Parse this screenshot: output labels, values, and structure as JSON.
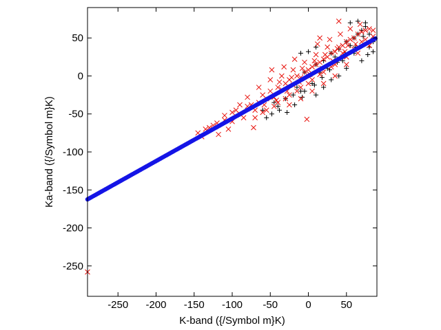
{
  "chart_data": {
    "type": "scatter",
    "title": "",
    "xlabel": "K-band ({/Symbol m}K)",
    "ylabel": "Ka-band ({/Symbol m}K)",
    "xlim": [
      -290,
      90
    ],
    "ylim": [
      -290,
      90
    ],
    "xticks": [
      -250,
      -200,
      -150,
      -100,
      -50,
      0,
      50
    ],
    "yticks": [
      -250,
      -200,
      -150,
      -100,
      -50,
      0,
      50
    ],
    "grid": false,
    "legend": "none",
    "series": [
      {
        "marker": "plus",
        "color": "#000000",
        "points": [
          [
            -45,
            -35
          ],
          [
            -40,
            -40
          ],
          [
            -30,
            -30
          ],
          [
            -20,
            -25
          ],
          [
            -15,
            -15
          ],
          [
            -10,
            -20
          ],
          [
            -5,
            5
          ],
          [
            0,
            0
          ],
          [
            5,
            -10
          ],
          [
            10,
            15
          ],
          [
            15,
            5
          ],
          [
            20,
            20
          ],
          [
            25,
            10
          ],
          [
            30,
            30
          ],
          [
            35,
            25
          ],
          [
            40,
            35
          ],
          [
            45,
            20
          ],
          [
            50,
            45
          ],
          [
            55,
            40
          ],
          [
            60,
            50
          ],
          [
            65,
            55
          ],
          [
            70,
            60
          ],
          [
            75,
            65
          ],
          [
            80,
            55
          ],
          [
            85,
            45
          ],
          [
            70,
            20
          ],
          [
            60,
            30
          ],
          [
            50,
            10
          ],
          [
            40,
            0
          ],
          [
            30,
            -5
          ],
          [
            20,
            -15
          ],
          [
            10,
            -25
          ],
          [
            -5,
            -20
          ],
          [
            55,
            70
          ],
          [
            65,
            72
          ],
          [
            75,
            70
          ],
          [
            72,
            52
          ],
          [
            62,
            38
          ],
          [
            48,
            28
          ],
          [
            38,
            18
          ],
          [
            28,
            8
          ],
          [
            18,
            -2
          ],
          [
            8,
            -12
          ],
          [
            -8,
            -28
          ],
          [
            -18,
            -38
          ],
          [
            -28,
            -48
          ],
          [
            -38,
            -45
          ],
          [
            -48,
            -50
          ],
          [
            -55,
            -55
          ],
          [
            -60,
            -45
          ],
          [
            80,
            38
          ],
          [
            85,
            32
          ],
          [
            78,
            28
          ],
          [
            -10,
            30
          ],
          [
            0,
            32
          ],
          [
            10,
            38
          ]
        ]
      },
      {
        "marker": "cross",
        "color": "#e8120c",
        "points": [
          [
            -290,
            -258
          ],
          [
            -145,
            -75
          ],
          [
            -140,
            -80
          ],
          [
            -135,
            -70
          ],
          [
            -125,
            -65
          ],
          [
            -118,
            -77
          ],
          [
            -110,
            -58
          ],
          [
            -105,
            -70
          ],
          [
            -100,
            -60
          ],
          [
            -95,
            -45
          ],
          [
            -90,
            -50
          ],
          [
            -85,
            -55
          ],
          [
            -80,
            -40
          ],
          [
            -75,
            -38
          ],
          [
            -72,
            -68
          ],
          [
            -70,
            -45
          ],
          [
            -65,
            -35
          ],
          [
            -60,
            -25
          ],
          [
            -55,
            -30
          ],
          [
            -50,
            -20
          ],
          [
            -45,
            -28
          ],
          [
            -40,
            -15
          ],
          [
            -35,
            -18
          ],
          [
            -30,
            -10
          ],
          [
            -25,
            -5
          ],
          [
            -20,
            -12
          ],
          [
            -15,
            0
          ],
          [
            -10,
            -2
          ],
          [
            -5,
            5
          ],
          [
            0,
            8
          ],
          [
            5,
            12
          ],
          [
            10,
            15
          ],
          [
            15,
            18
          ],
          [
            20,
            22
          ],
          [
            25,
            25
          ],
          [
            30,
            30
          ],
          [
            35,
            32
          ],
          [
            40,
            38
          ],
          [
            45,
            40
          ],
          [
            50,
            45
          ],
          [
            55,
            48
          ],
          [
            60,
            50
          ],
          [
            65,
            55
          ],
          [
            70,
            58
          ],
          [
            75,
            60
          ],
          [
            80,
            62
          ],
          [
            85,
            60
          ],
          [
            -2,
            -57
          ],
          [
            40,
            72
          ],
          [
            55,
            62
          ],
          [
            60,
            35
          ],
          [
            45,
            30
          ],
          [
            30,
            12
          ],
          [
            15,
            2
          ],
          [
            0,
            -10
          ],
          [
            -15,
            -20
          ],
          [
            -30,
            -30
          ],
          [
            -45,
            -40
          ],
          [
            -60,
            -48
          ],
          [
            -35,
            0
          ],
          [
            -20,
            8
          ],
          [
            -5,
            18
          ],
          [
            10,
            28
          ],
          [
            25,
            38
          ],
          [
            15,
            50
          ],
          [
            -25,
            -38
          ],
          [
            -10,
            -30
          ],
          [
            5,
            -20
          ],
          [
            20,
            -10
          ],
          [
            35,
            0
          ],
          [
            50,
            15
          ],
          [
            65,
            30
          ],
          [
            80,
            40
          ],
          [
            -50,
            -5
          ],
          [
            -65,
            -15
          ],
          [
            -80,
            -28
          ],
          [
            -90,
            -38
          ],
          [
            -100,
            -48
          ],
          [
            -110,
            -52
          ],
          [
            -120,
            -62
          ],
          [
            -130,
            -68
          ],
          [
            70,
            45
          ],
          [
            75,
            48
          ],
          [
            85,
            52
          ],
          [
            68,
            68
          ],
          [
            -58,
            -38
          ],
          [
            -42,
            -32
          ],
          [
            -28,
            -20
          ],
          [
            -12,
            -8
          ],
          [
            2,
            2
          ],
          [
            18,
            10
          ],
          [
            32,
            20
          ],
          [
            48,
            32
          ],
          [
            62,
            42
          ],
          [
            -38,
            -8
          ],
          [
            -22,
            -2
          ],
          [
            -8,
            10
          ],
          [
            8,
            20
          ],
          [
            22,
            28
          ],
          [
            38,
            36
          ],
          [
            52,
            40
          ],
          [
            -70,
            -55
          ],
          [
            -55,
            -45
          ],
          [
            -40,
            -35
          ],
          [
            -25,
            -25
          ],
          [
            -10,
            -15
          ],
          [
            5,
            -5
          ],
          [
            20,
            5
          ],
          [
            35,
            15
          ],
          [
            50,
            25
          ],
          [
            65,
            38
          ],
          [
            12,
            42
          ],
          [
            -18,
            22
          ],
          [
            -32,
            12
          ],
          [
            -48,
            8
          ],
          [
            28,
            48
          ],
          [
            42,
            55
          ]
        ]
      },
      {
        "marker": "circle",
        "color": "#1414e6",
        "line": {
          "slope": 0.56,
          "intercept": 0
        },
        "x_range": [
          -290,
          88
        ]
      }
    ]
  }
}
